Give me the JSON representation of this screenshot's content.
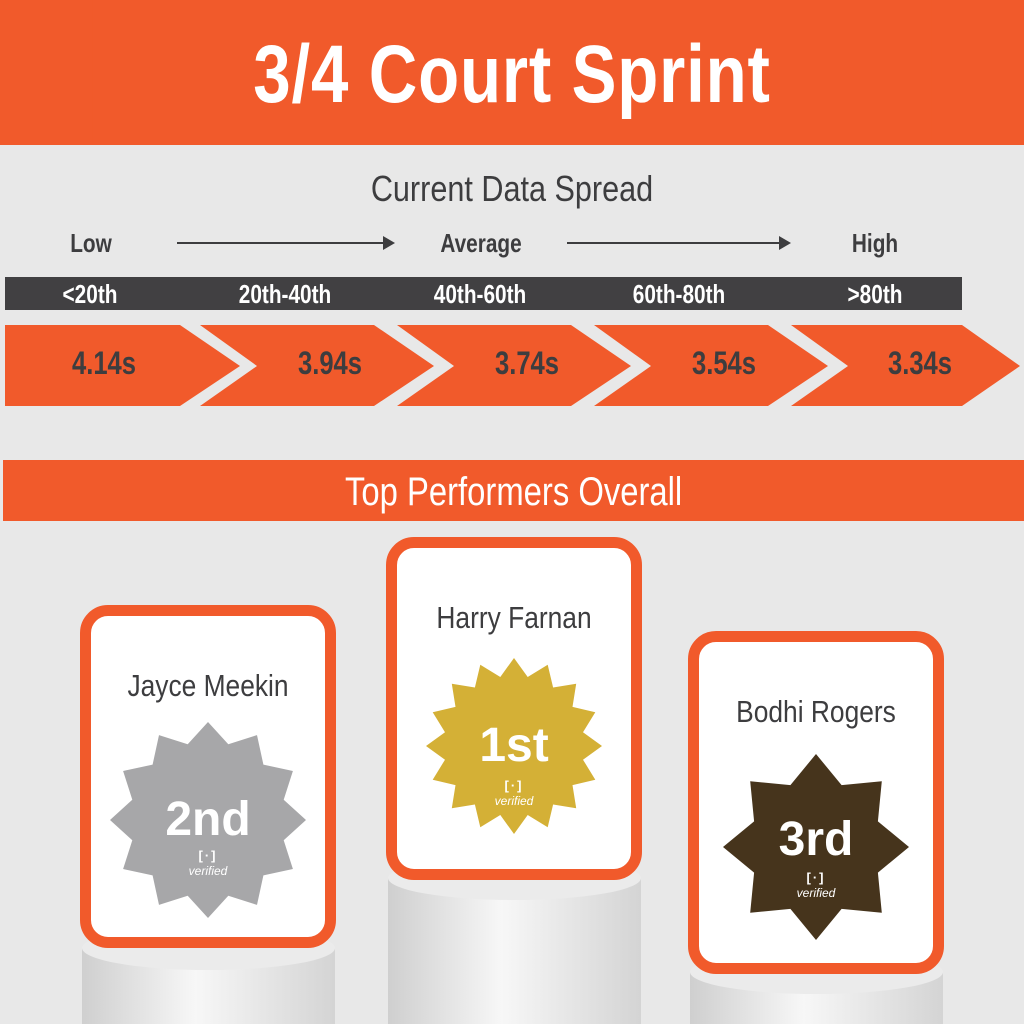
{
  "title": "3/4 Court Sprint",
  "spread": {
    "heading": "Current Data Spread",
    "scale_labels": [
      "Low",
      "Average",
      "High"
    ],
    "percentiles": [
      "<20th",
      "20th-40th",
      "40th-60th",
      "60th-80th",
      ">80th"
    ],
    "times": [
      "4.14s",
      "3.94s",
      "3.74s",
      "3.54s",
      "3.34s"
    ]
  },
  "performers": {
    "heading": "Top Performers Overall",
    "items": [
      {
        "name": "Jayce Meekin",
        "place": "2nd",
        "verified": "verified",
        "color": "#a7a7a9",
        "icon": "verified-bracket-icon"
      },
      {
        "name": "Harry Farnan",
        "place": "1st",
        "verified": "verified",
        "color": "#d4b036",
        "icon": "verified-bracket-icon"
      },
      {
        "name": "Bodhi Rogers",
        "place": "3rd",
        "verified": "verified",
        "color": "#46341c",
        "icon": "verified-bracket-icon"
      }
    ]
  },
  "colors": {
    "accent": "#f15a2b",
    "dark": "#414042",
    "background": "#e8e8e8"
  }
}
